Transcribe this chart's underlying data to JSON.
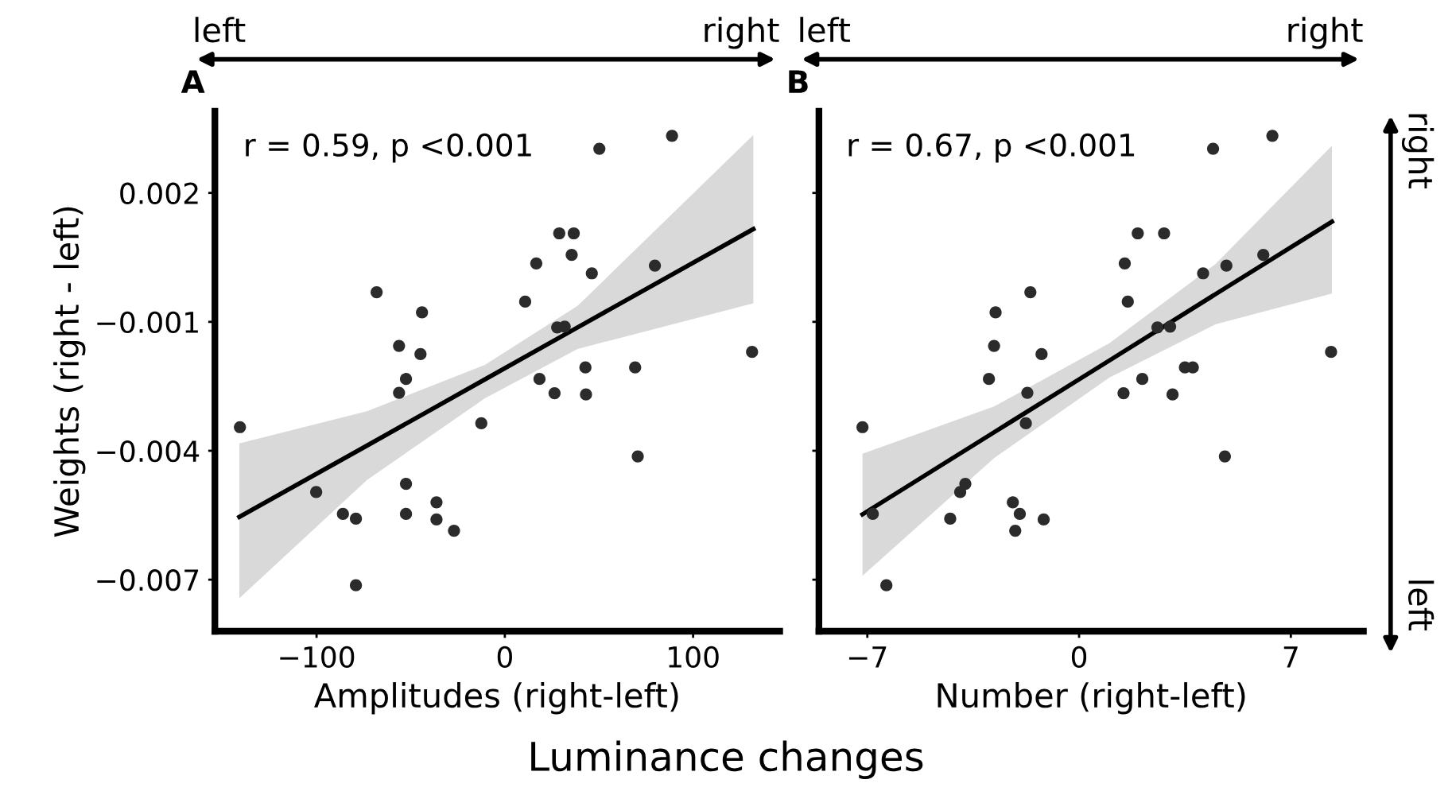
{
  "chart_data": [
    {
      "type": "scatter",
      "title": "A",
      "xlabel": "Amplitudes (right-left)",
      "ylabel": "Weights (right - left)",
      "annotations": [
        "r = 0.59, p <0.001",
        "left",
        "right",
        "Luminance changes"
      ],
      "xlim": [
        -154,
        146
      ],
      "ylim": [
        -0.0082,
        0.0039
      ],
      "xticks": [
        {
          "value": -100,
          "label": "−100"
        },
        0,
        100
      ],
      "yticks": [
        {
          "value": 0.002,
          "label": "0.002"
        },
        {
          "value": -0.001,
          "label": "−0.001"
        },
        {
          "value": -0.004,
          "label": "−0.004"
        },
        {
          "value": -0.007,
          "label": "−0.007"
        }
      ],
      "grid": false,
      "legend": false,
      "series": [
        {
          "marker": "circle",
          "color": "#2b2b2b",
          "x": [
            -140.7,
            -100.2,
            -86,
            -79.1,
            -79.1,
            -68.1,
            -56.2,
            -56.2,
            -52.5,
            -52.5,
            -52.5,
            -44,
            -44.8,
            -36.3,
            -36.3,
            -27,
            -12.5,
            10.8,
            16.7,
            18.4,
            26.4,
            27.8,
            31.8,
            28.9,
            36.6,
            35.5,
            46.2,
            42.8,
            43.1,
            50.2,
            69.2,
            70.6,
            79.7,
            88.8,
            131.3
          ],
          "values": [
            -0.00345,
            -0.00496,
            -0.00547,
            -0.00558,
            -0.00713,
            -0.00031,
            -0.00156,
            -0.00265,
            -0.00233,
            -0.00477,
            -0.00547,
            -0.00078,
            -0.00175,
            -0.0052,
            -0.0056,
            -0.00586,
            -0.00336,
            -0.00053,
            0.00036,
            -0.00233,
            -0.00266,
            -0.00113,
            -0.00111,
            0.00106,
            0.00106,
            0.00056,
            0.00013,
            -0.00206,
            -0.00269,
            0.00303,
            -0.00206,
            -0.00413,
            0.00031,
            0.00333,
            -0.0017
          ]
        },
        {
          "type": "line",
          "color": "#000000",
          "line_style": "solid",
          "x": [
            -141,
            -73.2,
            -10.6,
            38.6,
            132
          ],
          "values": [
            -0.00554,
            -0.00388,
            -0.00234,
            -0.00113,
            0.00116
          ],
          "lower": [
            -0.00743,
            -0.00468,
            -0.00278,
            -0.00163,
            -0.00057
          ],
          "upper": [
            -0.00383,
            -0.00308,
            -0.002,
            -0.00063,
            0.00335
          ]
        }
      ]
    },
    {
      "type": "scatter",
      "title": "B",
      "xlabel": "Number (right-left)",
      "annotations": [
        "r = 0.67, p <0.001",
        "left",
        "right",
        "right",
        "left"
      ],
      "xlim": [
        -8.6,
        9.4
      ],
      "ylim": [
        -0.0082,
        0.0039
      ],
      "xticks": [
        {
          "value": -7,
          "label": "−7"
        },
        0,
        7
      ],
      "yticks": [
        0.002,
        -0.001,
        -0.004,
        -0.007
      ],
      "tick_labels": "x",
      "grid": false,
      "legend": false,
      "series": [
        {
          "marker": "circle",
          "color": "#2b2b2b",
          "x": [
            -7.16,
            -6.82,
            -6.37,
            -4.26,
            -3.93,
            -3.76,
            -2.98,
            -2.81,
            -2.76,
            -2.19,
            -2.11,
            -1.96,
            -1.76,
            -1.71,
            -1.61,
            -1.24,
            -1.17,
            1.47,
            1.51,
            1.61,
            1.94,
            2.09,
            2.59,
            2.81,
            3.01,
            3.09,
            3.5,
            3.76,
            4.1,
            4.43,
            4.82,
            4.87,
            6.09,
            6.39,
            8.33
          ],
          "values": [
            -0.00345,
            -0.00547,
            -0.00713,
            -0.00558,
            -0.00496,
            -0.00477,
            -0.00233,
            -0.00156,
            -0.00078,
            -0.0052,
            -0.00586,
            -0.00547,
            -0.00336,
            -0.00265,
            -0.00031,
            -0.00175,
            -0.0056,
            -0.00266,
            0.00036,
            -0.00053,
            0.00106,
            -0.00233,
            -0.00113,
            0.00106,
            -0.00111,
            -0.00269,
            -0.00206,
            -0.00206,
            0.00013,
            0.00303,
            -0.00413,
            0.00031,
            0.00056,
            0.00333,
            -0.0017
          ]
        },
        {
          "type": "line",
          "color": "#000000",
          "line_style": "solid",
          "x": [
            -7.16,
            -2.81,
            1,
            4.5,
            8.36
          ],
          "values": [
            -0.00548,
            -0.00357,
            -0.0019,
            -0.00036,
            0.00133
          ],
          "lower": [
            -0.00691,
            -0.00417,
            -0.0023,
            -0.00106,
            -0.00034
          ],
          "upper": [
            -0.00407,
            -0.00297,
            -0.0015,
            0.00034,
            0.0031
          ]
        }
      ]
    }
  ]
}
